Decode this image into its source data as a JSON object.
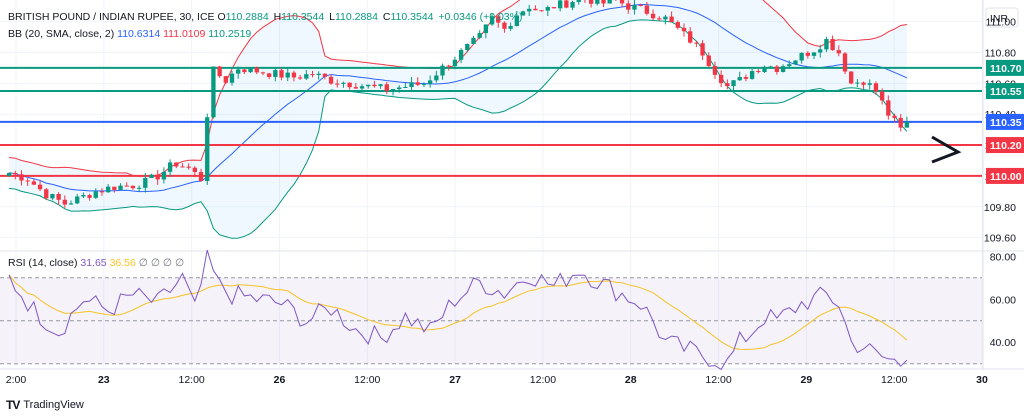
{
  "header": {
    "symbol": "BRITISH POUND / INDIAN RUPEE, 30, ICE",
    "open_label": "O",
    "open": "110.2884",
    "high_label": "H",
    "high": "110.3544",
    "low_label": "L",
    "low": "110.2884",
    "close_label": "C",
    "close": "110.3544",
    "change": "+0.0346 (+0.03%)",
    "bb_label": "BB (20, SMA, close, 2)",
    "bb_basis": "110.6314",
    "bb_upper": "111.0109",
    "bb_lower": "110.2519",
    "rsi_label": "RSI (14, close)",
    "rsi_value": "31.65",
    "rsi_ma": "36.56",
    "rsi_extra": "∅ ∅ ∅ ∅"
  },
  "currency": "INR",
  "brand": "TradingView",
  "colors": {
    "up": "#089981",
    "down": "#f23645",
    "bb_basis": "#2962ff",
    "bb_band": "#f23645",
    "bb_band_lower": "#089981",
    "rsi": "#7e57c2",
    "rsi_ma": "#f7c325",
    "level_teal": "#089981",
    "level_blue": "#2962ff",
    "level_red": "#f23645"
  },
  "chart_data": {
    "type": "candlestick",
    "price_axis": {
      "ticks": [
        "111.00",
        "110.80",
        "110.60",
        "110.40",
        "110.20",
        "110.00",
        "109.80",
        "109.60"
      ],
      "range": [
        109.52,
        111.14
      ]
    },
    "rsi_axis": {
      "ticks": [
        "80.00",
        "60.00",
        "40.00"
      ],
      "range": [
        28,
        82
      ],
      "upper_band": 70,
      "middle": 50,
      "lower_band": 30
    },
    "time_axis": {
      "labels": [
        "2:00",
        "23",
        "12:00",
        "26",
        "12:00",
        "27",
        "12:00",
        "28",
        "12:00",
        "29",
        "12:00",
        "30"
      ],
      "bold": [
        "23",
        "26",
        "27",
        "28",
        "29",
        "30"
      ]
    },
    "horizontal_levels": [
      {
        "label": "110.70",
        "value": 110.7,
        "color": "#089981"
      },
      {
        "label": "110.55",
        "value": 110.55,
        "color": "#089981"
      },
      {
        "label": "110.35",
        "value": 110.35,
        "color": "#2962ff"
      },
      {
        "label": "110.20",
        "value": 110.2,
        "color": "#f23645"
      },
      {
        "label": "110.00",
        "value": 110.0,
        "color": "#f23645"
      }
    ],
    "price_anchors": [
      [
        0,
        110.02
      ],
      [
        3,
        109.98
      ],
      [
        6,
        109.88
      ],
      [
        9,
        109.82
      ],
      [
        11,
        109.85
      ],
      [
        14,
        109.9
      ],
      [
        17,
        109.93
      ],
      [
        20,
        109.94
      ],
      [
        22,
        109.96
      ],
      [
        24,
        110.0
      ],
      [
        26,
        110.06
      ],
      [
        27,
        110.08
      ],
      [
        29,
        110.05
      ],
      [
        31,
        109.98
      ],
      [
        32,
        110.4
      ],
      [
        33,
        110.68
      ],
      [
        35,
        110.62
      ],
      [
        37,
        110.7
      ],
      [
        40,
        110.68
      ],
      [
        43,
        110.66
      ],
      [
        46,
        110.64
      ],
      [
        49,
        110.66
      ],
      [
        52,
        110.62
      ],
      [
        55,
        110.6
      ],
      [
        58,
        110.58
      ],
      [
        61,
        110.56
      ],
      [
        64,
        110.58
      ],
      [
        67,
        110.6
      ],
      [
        70,
        110.7
      ],
      [
        73,
        110.8
      ],
      [
        76,
        110.9
      ],
      [
        78,
        111.02
      ],
      [
        80,
        110.95
      ],
      [
        82,
        111.05
      ],
      [
        84,
        111.1
      ],
      [
        86,
        111.06
      ],
      [
        88,
        111.1
      ],
      [
        90,
        111.12
      ],
      [
        92,
        111.15
      ],
      [
        94,
        111.14
      ],
      [
        96,
        111.12
      ],
      [
        98,
        111.14
      ],
      [
        100,
        111.1
      ],
      [
        102,
        111.08
      ],
      [
        104,
        111.05
      ],
      [
        106,
        111.02
      ],
      [
        108,
        110.95
      ],
      [
        110,
        110.88
      ],
      [
        112,
        110.8
      ],
      [
        114,
        110.68
      ],
      [
        116,
        110.58
      ],
      [
        118,
        110.62
      ],
      [
        120,
        110.68
      ],
      [
        122,
        110.72
      ],
      [
        124,
        110.7
      ],
      [
        126,
        110.74
      ],
      [
        128,
        110.78
      ],
      [
        130,
        110.82
      ],
      [
        132,
        110.88
      ],
      [
        134,
        110.8
      ],
      [
        136,
        110.6
      ],
      [
        138,
        110.62
      ],
      [
        140,
        110.55
      ],
      [
        142,
        110.4
      ],
      [
        144,
        110.3
      ],
      [
        145,
        110.35
      ]
    ],
    "rsi_anchors": [
      [
        0,
        70
      ],
      [
        4,
        55
      ],
      [
        8,
        45
      ],
      [
        12,
        60
      ],
      [
        16,
        55
      ],
      [
        20,
        62
      ],
      [
        24,
        58
      ],
      [
        28,
        70
      ],
      [
        30,
        55
      ],
      [
        32,
        78
      ],
      [
        34,
        66
      ],
      [
        36,
        62
      ],
      [
        40,
        60
      ],
      [
        44,
        58
      ],
      [
        48,
        50
      ],
      [
        52,
        56
      ],
      [
        56,
        46
      ],
      [
        60,
        42
      ],
      [
        64,
        52
      ],
      [
        68,
        45
      ],
      [
        72,
        60
      ],
      [
        76,
        68
      ],
      [
        80,
        63
      ],
      [
        84,
        72
      ],
      [
        88,
        66
      ],
      [
        92,
        74
      ],
      [
        96,
        67
      ],
      [
        98,
        64
      ],
      [
        102,
        58
      ],
      [
        104,
        50
      ],
      [
        106,
        40
      ],
      [
        108,
        38
      ],
      [
        112,
        34
      ],
      [
        116,
        30
      ],
      [
        118,
        40
      ],
      [
        120,
        45
      ],
      [
        122,
        52
      ],
      [
        124,
        50
      ],
      [
        126,
        54
      ],
      [
        128,
        58
      ],
      [
        130,
        60
      ],
      [
        132,
        62
      ],
      [
        134,
        58
      ],
      [
        136,
        40
      ],
      [
        138,
        38
      ],
      [
        140,
        34
      ],
      [
        142,
        32
      ],
      [
        144,
        30
      ],
      [
        145,
        31.65
      ]
    ],
    "bars": 146,
    "last_close": 110.3544
  }
}
